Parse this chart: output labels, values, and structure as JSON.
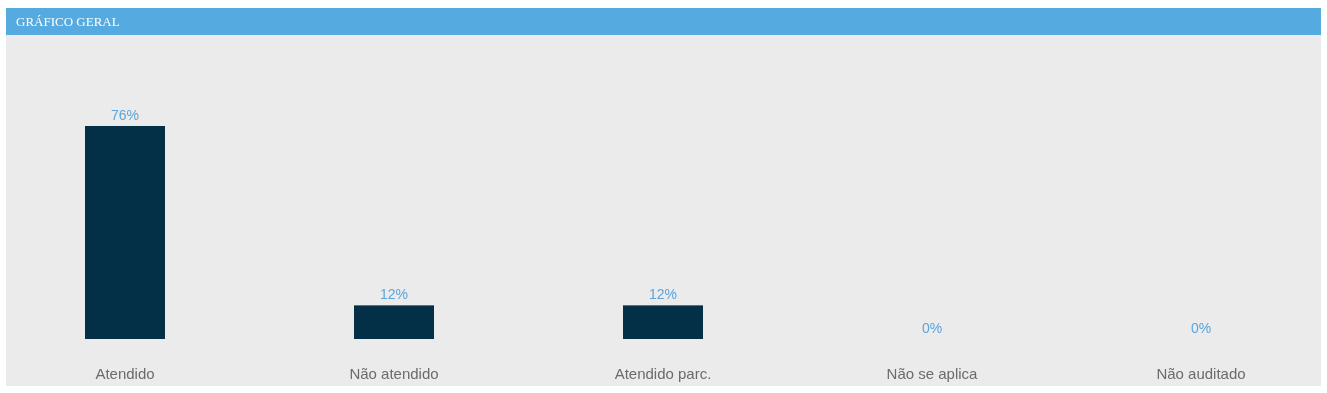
{
  "chart_data": {
    "type": "bar",
    "title": "GRÁFICO GERAL",
    "categories": [
      "Atendido",
      "Não atendido",
      "Atendido parc.",
      "Não se aplica",
      "Não auditado"
    ],
    "values": [
      76,
      12,
      12,
      0,
      0
    ],
    "value_labels": [
      "76%",
      "12%",
      "12%",
      "0%",
      "0%"
    ],
    "color": "#033047"
  }
}
